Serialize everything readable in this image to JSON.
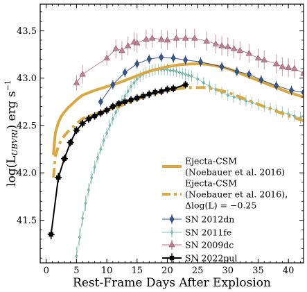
{
  "chart_data": {
    "type": "line",
    "xlabel": "Rest-Frame Days After Explosion",
    "ylabel_main": "log(L",
    "ylabel_sub": "UBVRI",
    "ylabel_tail": ") erg s",
    "ylabel_sup": "−1",
    "xlim": [
      -1,
      42.5
    ],
    "ylim": [
      41.05,
      43.78
    ],
    "x_ticks": [
      0,
      5,
      10,
      15,
      20,
      25,
      30,
      35,
      40
    ],
    "y_ticks": [
      41.5,
      42.0,
      42.5,
      43.0,
      43.5
    ],
    "y_tick_labels": [
      "41.5",
      "42.0",
      "42.5",
      "43.0",
      "43.5"
    ],
    "grid": false,
    "legend_position": "lower-right",
    "colors": {
      "model": "#dba840",
      "sn2012dn": "#36588f",
      "sn2011fe": "#7fbfb0",
      "sn2009dc": "#b07088",
      "sn2022pul": "#000000"
    },
    "series": [
      {
        "key": "model",
        "name": "Ejecta-CSM\n(Noebauer et al. 2016)",
        "style": "solid",
        "x": [
          1.2,
          1.5,
          2.0,
          2.5,
          3.0,
          3.5,
          4.0,
          5.0,
          6.0,
          8.0,
          10.0,
          12.0,
          14.0,
          16.0,
          18.0,
          20.0,
          22.0,
          24.0,
          26.0,
          28.0,
          30.0,
          32.0,
          34.0,
          36.0,
          38.0,
          40.0,
          42.5
        ],
        "y": [
          42.2,
          42.42,
          42.53,
          42.6,
          42.64,
          42.68,
          42.71,
          42.77,
          42.82,
          42.87,
          42.91,
          42.95,
          43.0,
          43.05,
          43.09,
          43.12,
          43.14,
          43.15,
          43.15,
          43.13,
          43.1,
          43.05,
          43.0,
          42.95,
          42.9,
          42.85,
          42.8
        ]
      },
      {
        "key": "model_shift",
        "name": "Ejecta-CSM\n(Noebauer et al. 2016),\nΔlog(L) = −0.25",
        "style": "dashed",
        "x": [
          1.2,
          1.5,
          2.0,
          2.5,
          3.0,
          3.5,
          4.0,
          5.0,
          6.0,
          8.0,
          10.0,
          12.0,
          14.0,
          16.0,
          18.0,
          20.0,
          22.0,
          24.0,
          26.0,
          28.0,
          30.0,
          32.0,
          34.0,
          36.0,
          38.0,
          40.0,
          42.5
        ],
        "y": [
          41.95,
          42.17,
          42.28,
          42.35,
          42.39,
          42.43,
          42.46,
          42.52,
          42.57,
          42.62,
          42.66,
          42.7,
          42.75,
          42.8,
          42.84,
          42.87,
          42.89,
          42.9,
          42.9,
          42.88,
          42.85,
          42.8,
          42.75,
          42.7,
          42.65,
          42.6,
          42.55
        ]
      },
      {
        "key": "sn2012dn",
        "name": "SN 2012dn",
        "marker": "diamond",
        "x": [
          9.0,
          11.0,
          13.0,
          15.0,
          17.0,
          19.0,
          21.0,
          23.0,
          25.5,
          29.0,
          31.5,
          33.5,
          35.5,
          38.0,
          40.5,
          42.5
        ],
        "y": [
          42.75,
          42.93,
          43.06,
          43.15,
          43.2,
          43.22,
          43.21,
          43.19,
          43.17,
          43.12,
          43.07,
          43.04,
          42.98,
          42.92,
          42.87,
          42.85
        ],
        "err": [
          0.05,
          0.05,
          0.05,
          0.05,
          0.05,
          0.05,
          0.05,
          0.05,
          0.05,
          0.05,
          0.05,
          0.05,
          0.05,
          0.05,
          0.05,
          0.05
        ]
      },
      {
        "key": "sn2011fe",
        "name": "SN 2011fe",
        "marker": "small-diamond",
        "x": [
          5.0,
          5.5,
          6.0,
          6.5,
          7.0,
          7.5,
          8.0,
          8.5,
          9.0,
          9.5,
          10.0,
          10.5,
          11.0,
          11.5,
          12.0,
          12.5,
          13.0,
          13.5,
          14.0,
          14.5,
          15.0,
          15.5,
          16.0,
          16.5,
          17.0,
          17.5,
          18.0,
          18.5,
          19.0,
          19.5,
          20.0,
          20.5,
          21.0,
          21.5,
          22.0,
          22.5,
          23.0,
          23.5,
          24.0,
          25.0,
          26.0,
          27.0,
          28.0,
          29.0,
          30.0,
          31.0,
          32.0,
          33.0,
          34.0,
          35.0,
          36.0,
          37.0,
          38.0,
          39.0,
          40.0,
          41.0,
          42.0
        ],
        "y": [
          41.12,
          41.32,
          41.52,
          41.68,
          41.82,
          41.95,
          42.06,
          42.16,
          42.25,
          42.34,
          42.42,
          42.5,
          42.57,
          42.64,
          42.7,
          42.76,
          42.81,
          42.86,
          42.91,
          42.95,
          42.99,
          43.02,
          43.04,
          43.06,
          43.07,
          43.08,
          43.09,
          43.09,
          43.09,
          43.09,
          43.09,
          43.08,
          43.08,
          43.07,
          43.06,
          43.05,
          43.04,
          43.03,
          43.02,
          42.99,
          42.95,
          42.91,
          42.88,
          42.85,
          42.82,
          42.8,
          42.78,
          42.76,
          42.74,
          42.72,
          42.7,
          42.68,
          42.66,
          42.64,
          42.62,
          42.6,
          42.58
        ],
        "err": [
          0.1,
          0.09,
          0.08,
          0.08,
          0.07,
          0.07,
          0.07,
          0.06,
          0.06,
          0.06,
          0.06,
          0.06,
          0.06,
          0.06,
          0.06,
          0.06,
          0.06,
          0.06,
          0.06,
          0.06,
          0.06,
          0.06,
          0.06,
          0.06,
          0.06,
          0.06,
          0.06,
          0.06,
          0.06,
          0.06,
          0.06,
          0.06,
          0.06,
          0.06,
          0.06,
          0.06,
          0.06,
          0.06,
          0.06,
          0.06,
          0.06,
          0.06,
          0.06,
          0.06,
          0.06,
          0.06,
          0.06,
          0.06,
          0.06,
          0.06,
          0.06,
          0.06,
          0.06,
          0.06,
          0.06,
          0.06,
          0.06
        ]
      },
      {
        "key": "sn2009dc",
        "name": "SN 2009dc",
        "marker": "triangle",
        "x": [
          5.0,
          6.0,
          10.0,
          11.5,
          12.5,
          13.5,
          14.5,
          15.0,
          16.5,
          17.5,
          19.0,
          20.0,
          21.5,
          23.0,
          24.5,
          26.5,
          28.0,
          29.0,
          30.0,
          31.0,
          32.0,
          33.5,
          35.0,
          36.0,
          38.0,
          39.0,
          40.0,
          41.0,
          42.5
        ],
        "y": [
          42.95,
          43.04,
          43.21,
          43.31,
          43.29,
          43.34,
          43.38,
          43.37,
          43.41,
          43.42,
          43.41,
          43.4,
          43.42,
          43.42,
          43.42,
          43.39,
          43.36,
          43.34,
          43.33,
          43.31,
          43.29,
          43.26,
          43.21,
          43.19,
          43.15,
          43.12,
          43.11,
          43.1,
          43.05
        ],
        "err": [
          0.08,
          0.1,
          0.08,
          0.1,
          0.1,
          0.1,
          0.1,
          0.1,
          0.1,
          0.1,
          0.1,
          0.1,
          0.1,
          0.1,
          0.1,
          0.1,
          0.1,
          0.1,
          0.1,
          0.1,
          0.1,
          0.1,
          0.1,
          0.1,
          0.1,
          0.1,
          0.1,
          0.1,
          0.1
        ]
      },
      {
        "key": "sn2022pul",
        "name": "SN 2022pul",
        "marker": "plus",
        "x": [
          0.8,
          2.0,
          3.0,
          4.0,
          5.0,
          6.0,
          7.0,
          8.0,
          9.0,
          10.0,
          11.0,
          12.0,
          13.0,
          14.0,
          15.0,
          16.0,
          17.0,
          18.0,
          19.0,
          20.0,
          21.0,
          23.0
        ],
        "y": [
          41.35,
          41.95,
          42.15,
          42.32,
          42.45,
          42.52,
          42.57,
          42.6,
          42.63,
          42.66,
          42.7,
          42.73,
          42.75,
          42.77,
          42.79,
          42.81,
          42.83,
          42.85,
          42.86,
          42.88,
          42.89,
          42.93
        ],
        "err": [
          0.05,
          0.05,
          0.04,
          0.04,
          0.04,
          0.04,
          0.04,
          0.04,
          0.04,
          0.04,
          0.04,
          0.04,
          0.04,
          0.04,
          0.04,
          0.04,
          0.04,
          0.04,
          0.04,
          0.04,
          0.04,
          0.04
        ]
      }
    ]
  }
}
